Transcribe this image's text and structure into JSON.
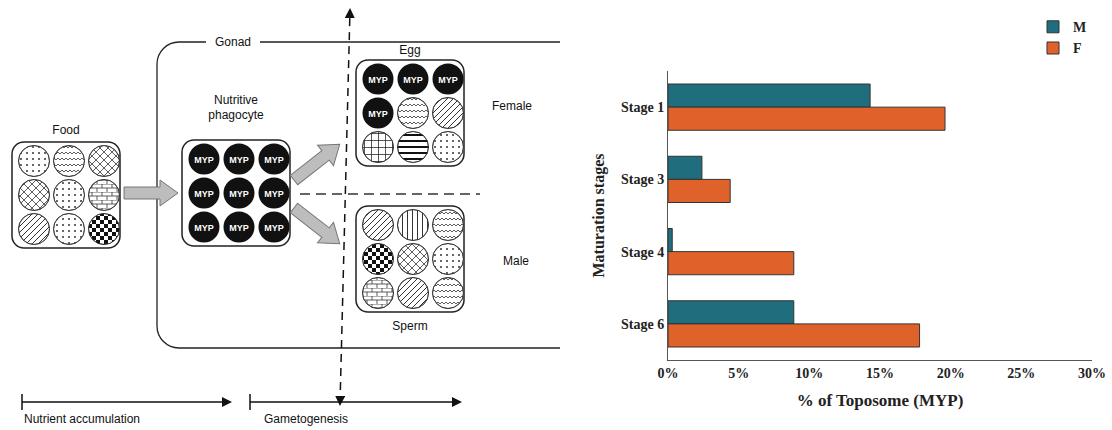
{
  "diagram": {
    "gonad": "Gonad",
    "food": "Food",
    "phagocyte": "Nutritive phagocyte",
    "egg": "Egg",
    "sperm": "Sperm",
    "female": "Female",
    "male": "Male",
    "protein": "MYP",
    "timeline": [
      "Nutrient accumulation",
      "Gametogenesis"
    ]
  },
  "chart_data": {
    "type": "bar",
    "orientation": "horizontal",
    "categories": [
      "Stage 1",
      "Stage 3",
      "Stage 4",
      "Stage 6"
    ],
    "series": [
      {
        "name": "M",
        "color": "#1f6e7e",
        "values": [
          14.3,
          2.4,
          0.3,
          8.9
        ]
      },
      {
        "name": "F",
        "color": "#e0622b",
        "values": [
          19.6,
          4.4,
          8.9,
          17.8
        ]
      }
    ],
    "x_label": "% of Toposome (MYP)",
    "y_label": "Maturation stages",
    "xlim": [
      0,
      30
    ],
    "xticks": [
      {
        "value": 0,
        "label": "0%"
      },
      {
        "value": 5,
        "label": "5%"
      },
      {
        "value": 10,
        "label": "10%"
      },
      {
        "value": 15,
        "label": "15%"
      },
      {
        "value": 20,
        "label": "20%"
      },
      {
        "value": 25,
        "label": "25%"
      },
      {
        "value": 30,
        "label": "30%"
      }
    ],
    "grid": false,
    "legend": "top right"
  }
}
